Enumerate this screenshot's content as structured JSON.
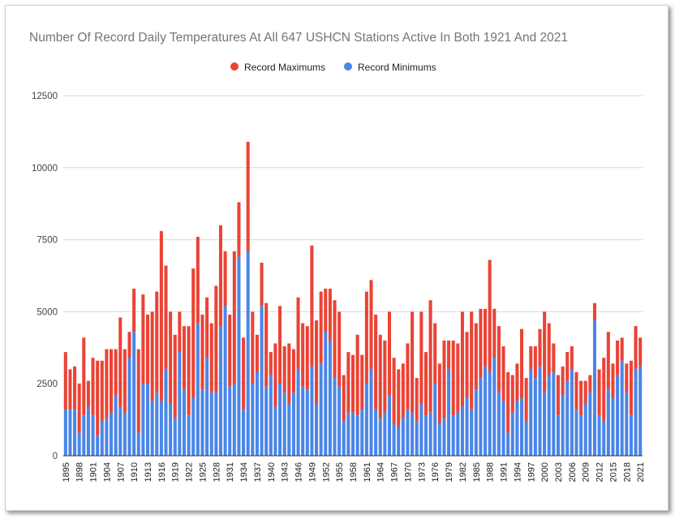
{
  "chart_data": {
    "type": "bar",
    "stacked": true,
    "title": "Number Of Record Daily Temperatures At All 647 USHCN Stations Active In Both 1921 And 2021",
    "xlabel": "",
    "ylabel": "",
    "ylim": [
      0,
      12500
    ],
    "yticks": [
      "0",
      "2500",
      "5000",
      "7500",
      "10000",
      "12500"
    ],
    "grid": true,
    "legend_position": "top",
    "x_tick_labels": [
      "1895",
      "1898",
      "1901",
      "1904",
      "1907",
      "1910",
      "1913",
      "1916",
      "1919",
      "1922",
      "1925",
      "1928",
      "1931",
      "1934",
      "1937",
      "1940",
      "1943",
      "1946",
      "1949",
      "1952",
      "1955",
      "1958",
      "1961",
      "1964",
      "1967",
      "1970",
      "1973",
      "1976",
      "1979",
      "1982",
      "1985",
      "1988",
      "1991",
      "1994",
      "1997",
      "2000",
      "2003",
      "2006",
      "2009",
      "2012",
      "2015",
      "2018",
      "2021"
    ],
    "categories": [
      1895,
      1896,
      1897,
      1898,
      1899,
      1900,
      1901,
      1902,
      1903,
      1904,
      1905,
      1906,
      1907,
      1908,
      1909,
      1910,
      1911,
      1912,
      1913,
      1914,
      1915,
      1916,
      1917,
      1918,
      1919,
      1920,
      1921,
      1922,
      1923,
      1924,
      1925,
      1926,
      1927,
      1928,
      1929,
      1930,
      1931,
      1932,
      1933,
      1934,
      1935,
      1936,
      1937,
      1938,
      1939,
      1940,
      1941,
      1942,
      1943,
      1944,
      1945,
      1946,
      1947,
      1948,
      1949,
      1950,
      1951,
      1952,
      1953,
      1954,
      1955,
      1956,
      1957,
      1958,
      1959,
      1960,
      1961,
      1962,
      1963,
      1964,
      1965,
      1966,
      1967,
      1968,
      1969,
      1970,
      1971,
      1972,
      1973,
      1974,
      1975,
      1976,
      1977,
      1978,
      1979,
      1980,
      1981,
      1982,
      1983,
      1984,
      1985,
      1986,
      1987,
      1988,
      1989,
      1990,
      1991,
      1992,
      1993,
      1994,
      1995,
      1996,
      1997,
      1998,
      1999,
      2000,
      2001,
      2002,
      2003,
      2004,
      2005,
      2006,
      2007,
      2008,
      2009,
      2010,
      2011,
      2012,
      2013,
      2014,
      2015,
      2016,
      2017,
      2018,
      2019,
      2020,
      2021
    ],
    "series": [
      {
        "name": "Record Minimums",
        "color": "#4a86e8",
        "values": [
          1600,
          1600,
          1600,
          800,
          1400,
          1700,
          1400,
          700,
          1200,
          1300,
          1500,
          2100,
          1700,
          1500,
          3400,
          4300,
          800,
          2500,
          2500,
          1900,
          2200,
          1900,
          3000,
          1800,
          1300,
          3600,
          2300,
          1400,
          2000,
          4600,
          2300,
          3400,
          2200,
          2200,
          4500,
          5200,
          2400,
          2500,
          6900,
          1600,
          7100,
          2500,
          2900,
          5200,
          2400,
          2800,
          1700,
          2500,
          2200,
          1800,
          2200,
          3000,
          2400,
          2300,
          3100,
          1800,
          3200,
          4300,
          4000,
          2700,
          2400,
          1200,
          1500,
          1500,
          1400,
          1600,
          2500,
          3000,
          1600,
          1300,
          1500,
          2100,
          1100,
          1000,
          1300,
          1600,
          1500,
          1200,
          1800,
          1400,
          1500,
          2500,
          1100,
          1300,
          3000,
          1400,
          1500,
          1700,
          2000,
          1600,
          2300,
          2700,
          3100,
          2900,
          3400,
          2200,
          1900,
          800,
          1500,
          1900,
          2000,
          1200,
          3000,
          2700,
          3100,
          2200,
          2800,
          2900,
          1400,
          2100,
          2600,
          3000,
          1600,
          1400,
          1800,
          2200,
          4700,
          1400,
          1200,
          2300,
          2000,
          2800,
          3300,
          2200,
          1400,
          3000,
          3100
        ]
      },
      {
        "name": "Record Maximums",
        "color": "#ea4335",
        "values": [
          2000,
          1400,
          1500,
          1700,
          2700,
          900,
          2000,
          2600,
          2100,
          2400,
          2200,
          1600,
          3100,
          2200,
          900,
          1500,
          2900,
          3100,
          2400,
          3100,
          3500,
          5900,
          3600,
          3200,
          2900,
          1400,
          2200,
          3100,
          4500,
          3000,
          2600,
          2100,
          2400,
          3700,
          3500,
          1900,
          2500,
          4600,
          1900,
          2500,
          3800,
          2500,
          1300,
          1500,
          2900,
          800,
          2200,
          2700,
          1600,
          2100,
          1500,
          2500,
          2200,
          2200,
          4200,
          2900,
          2500,
          1500,
          1800,
          2700,
          2600,
          1600,
          2100,
          2000,
          2800,
          1900,
          3200,
          3100,
          3300,
          2900,
          2500,
          2900,
          2300,
          2000,
          1900,
          2300,
          3500,
          1500,
          3200,
          2200,
          3900,
          2100,
          2100,
          2700,
          1000,
          2600,
          2400,
          3300,
          2300,
          3400,
          2300,
          2400,
          2000,
          3900,
          1700,
          2300,
          1900,
          2100,
          1300,
          1300,
          2400,
          1500,
          800,
          1100,
          1300,
          2800,
          1800,
          1000,
          1400,
          1000,
          1000,
          800,
          1300,
          1200,
          800,
          600,
          600,
          1600,
          2200,
          2000,
          1200,
          1200,
          800,
          1000,
          1900,
          1500,
          1000
        ]
      }
    ]
  }
}
